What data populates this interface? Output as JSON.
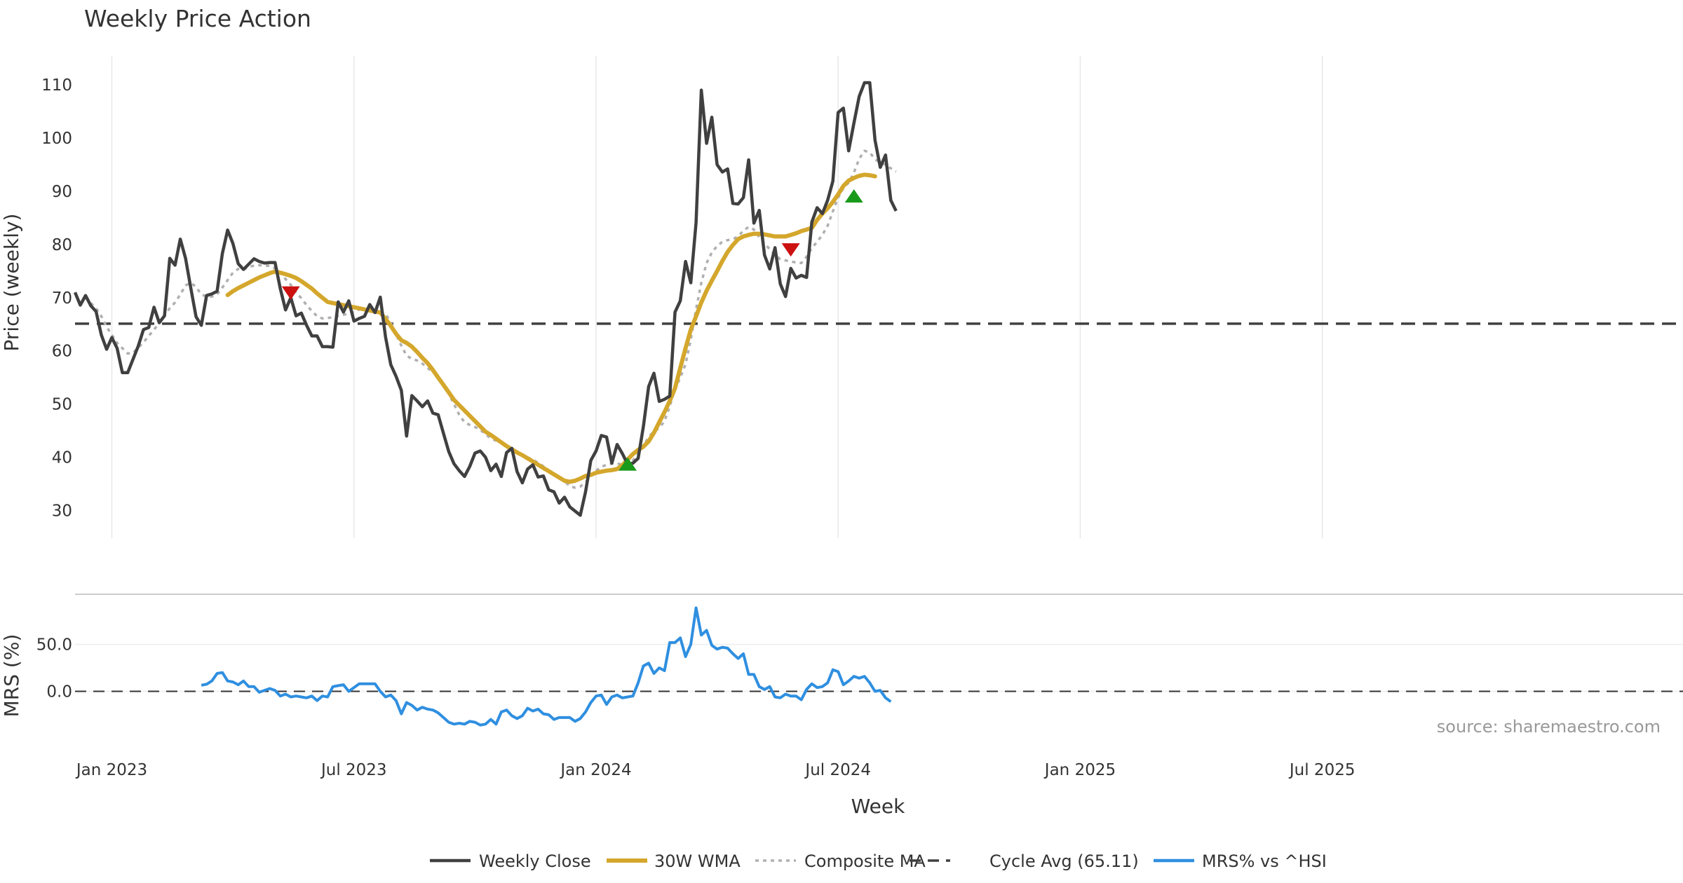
{
  "chart_data": {
    "type": "line",
    "title": "Weekly Price Action",
    "xlabel": "Week",
    "source_note": "source: sharemaestro.com",
    "colors": {
      "close": "#404040",
      "wma": "#d4a72c",
      "composite": "#b0b0b0",
      "cycle": "#404040",
      "mrs": "#2f8fe0",
      "buy": "#1a9a1a",
      "sell": "#cc1111",
      "grid": "#e8e8e8"
    },
    "x_ticks": [
      "Jan 2023",
      "Jul 2023",
      "Jan 2024",
      "Jul 2024",
      "Jan 2025",
      "Jul 2025"
    ],
    "x_tick_weeks": [
      7,
      53,
      99,
      145,
      191,
      237
    ],
    "price_panel": {
      "ylabel": "Price (weekly)",
      "ylim": [
        24.8,
        115.4
      ],
      "y_ticks": [
        "110",
        "100",
        "90",
        "80",
        "70",
        "60",
        "50",
        "40",
        "30"
      ],
      "y_tick_values": [
        110,
        100,
        90,
        80,
        70,
        60,
        50,
        40,
        30
      ],
      "weekly_close": [
        71.0,
        68.6,
        70.4,
        68.5,
        67.4,
        63.0,
        60.3,
        62.5,
        60.5,
        55.9,
        55.9,
        58.4,
        60.9,
        64.0,
        64.4,
        68.2,
        65.3,
        66.6,
        77.4,
        76.1,
        81.0,
        77.4,
        71.8,
        66.4,
        64.8,
        70.4,
        70.7,
        71.2,
        78.3,
        82.7,
        80.2,
        76.4,
        75.3,
        76.3,
        77.3,
        76.8,
        76.5,
        76.6,
        76.6,
        71.7,
        67.7,
        70.0,
        66.6,
        67.1,
        64.8,
        62.8,
        62.8,
        60.8,
        60.8,
        60.7,
        69.2,
        67.3,
        69.4,
        65.6,
        66.1,
        66.5,
        68.7,
        67.2,
        70.1,
        62.6,
        57.4,
        55.2,
        52.6,
        44.0,
        51.6,
        50.6,
        49.5,
        50.6,
        48.3,
        48.0,
        44.5,
        41.1,
        38.8,
        37.5,
        36.4,
        38.3,
        40.8,
        41.2,
        40.0,
        37.5,
        38.7,
        36.4,
        40.9,
        41.7,
        37.3,
        35.2,
        37.8,
        38.6,
        36.3,
        36.5,
        33.9,
        33.5,
        31.4,
        32.5,
        30.7,
        29.9,
        29.1,
        33.5,
        39.4,
        41.2,
        44.1,
        43.8,
        38.9,
        42.4,
        40.7,
        38.7,
        38.9,
        39.8,
        45.8,
        53.3,
        55.8,
        50.5,
        50.9,
        51.5,
        67.3,
        69.4,
        76.8,
        72.8,
        84.1,
        109.0,
        99.0,
        103.9,
        95.0,
        93.6,
        94.2,
        87.7,
        87.6,
        88.8,
        95.9,
        84.0,
        86.4,
        78.0,
        75.4,
        79.4,
        72.6,
        70.2,
        75.5,
        73.7,
        74.2,
        73.8,
        84.2,
        86.9,
        85.8,
        88.3,
        91.9,
        104.8,
        105.6,
        97.6,
        102.8,
        107.8,
        110.4,
        110.4,
        99.6,
        94.5,
        96.8,
        88.3,
        86.3
      ],
      "wma_30w": {
        "start_week": 29,
        "values": [
          70.5,
          71.2,
          71.8,
          72.3,
          72.8,
          73.3,
          73.8,
          74.2,
          74.6,
          74.9,
          74.7,
          74.4,
          74.1,
          73.7,
          73.1,
          72.4,
          71.7,
          70.8,
          70.0,
          69.2,
          69.0,
          68.8,
          68.6,
          68.4,
          68.2,
          68.0,
          67.8,
          67.6,
          67.4,
          67.2,
          66.0,
          64.7,
          63.2,
          62.0,
          61.5,
          60.8,
          59.8,
          58.7,
          57.7,
          56.4,
          55.0,
          53.6,
          52.2,
          50.8,
          49.8,
          48.8,
          47.8,
          46.8,
          45.8,
          44.8,
          44.2,
          43.5,
          42.8,
          42.1,
          41.5,
          40.9,
          40.4,
          39.8,
          39.2,
          38.6,
          38.0,
          37.4,
          36.8,
          36.2,
          35.6,
          35.4,
          35.6,
          36.0,
          36.5,
          36.7,
          37.1,
          37.3,
          37.5,
          37.6,
          37.8,
          38.5,
          39.6,
          40.6,
          41.4,
          42.0,
          43.0,
          44.6,
          46.6,
          48.5,
          50.6,
          53.0,
          56.8,
          60.5,
          64.0,
          66.5,
          69.1,
          71.3,
          73.2,
          75.0,
          76.9,
          78.6,
          79.9,
          81.0,
          81.5,
          81.8,
          82.0,
          82.0,
          81.9,
          81.7,
          81.5,
          81.5,
          81.5,
          81.8,
          82.1,
          82.5,
          82.8,
          83.1,
          84.6,
          85.8,
          86.8,
          88.0,
          89.4,
          91.0,
          92.0,
          92.5,
          92.9,
          93.1,
          93.0,
          92.8
        ]
      },
      "composite_ma": {
        "start_week": 3,
        "values": [
          69.0,
          68.0,
          66.5,
          64.5,
          63.0,
          61.5,
          60.5,
          59.5,
          59.6,
          60.6,
          61.6,
          62.8,
          64.0,
          65.2,
          66.7,
          68.0,
          69.1,
          70.6,
          72.3,
          72.8,
          72.0,
          70.6,
          70.2,
          70.2,
          70.6,
          71.9,
          73.3,
          74.7,
          75.4,
          75.3,
          75.8,
          76.0,
          76.1,
          76.0,
          76.0,
          75.5,
          74.6,
          73.5,
          72.4,
          71.0,
          69.9,
          68.6,
          67.5,
          66.5,
          66.1,
          66.2,
          66.3,
          66.6,
          66.8,
          67.0,
          67.3,
          67.8,
          67.6,
          67.4,
          67.2,
          67.2,
          67.0,
          65.3,
          63.1,
          61.0,
          59.1,
          58.5,
          58.2,
          57.6,
          56.8,
          56.0,
          55.1,
          53.7,
          51.9,
          50.0,
          48.0,
          46.6,
          46.1,
          45.7,
          45.2,
          44.3,
          43.6,
          43.1,
          42.7,
          42.1,
          41.5,
          40.9,
          40.4,
          40.0,
          39.5,
          39.0,
          38.3,
          37.5,
          36.8,
          36.1,
          35.5,
          34.6,
          34.3,
          34.5,
          35.3,
          36.4,
          37.5,
          38.2,
          38.6,
          38.8,
          38.8,
          38.7,
          38.9,
          39.4,
          40.6,
          42.2,
          43.8,
          44.9,
          45.5,
          46.8,
          49.6,
          52.8,
          55.0,
          57.5,
          62.2,
          67.8,
          72.8,
          76.5,
          78.5,
          79.7,
          80.5,
          80.8,
          81.0,
          81.5,
          82.6,
          83.3,
          82.8,
          81.4,
          80.2,
          79.1,
          78.1,
          77.2,
          77.0,
          76.8,
          76.6,
          76.5,
          77.7,
          79.3,
          80.5,
          81.8,
          83.5,
          86.2,
          88.8,
          90.6,
          91.6,
          93.5,
          96.1,
          97.6,
          97.3,
          96.0,
          95.4,
          95.0,
          94.3,
          93.7
        ]
      },
      "cycle_avg": {
        "value": 65.11,
        "label": "Cycle Avg (65.11)"
      },
      "signals": [
        {
          "type": "sell",
          "week": 41,
          "price": 70.8
        },
        {
          "type": "buy",
          "week": 105,
          "price": 38.8
        },
        {
          "type": "sell",
          "week": 136,
          "price": 78.9
        },
        {
          "type": "buy",
          "week": 148,
          "price": 89.2
        }
      ]
    },
    "mrs_panel": {
      "ylabel": "MRS (%)",
      "ylim": [
        -40,
        93
      ],
      "y_ticks": [
        "50.0",
        "0.0"
      ],
      "y_tick_values": [
        50,
        0
      ],
      "zero_line": 0,
      "start_week": 24,
      "values": [
        6.5,
        7.5,
        11,
        19,
        20,
        11,
        10,
        7,
        11,
        5,
        5,
        -1,
        1,
        3,
        1,
        -5,
        -3,
        -6,
        -5,
        -6,
        -7,
        -5,
        -10,
        -5,
        -6,
        5,
        6,
        7,
        0,
        4,
        8,
        8,
        8,
        8,
        0,
        -6,
        -4,
        -10,
        -24,
        -12,
        -15,
        -20,
        -17,
        -19,
        -20,
        -23,
        -28,
        -33,
        -35,
        -34,
        -35,
        -32,
        -33,
        -36,
        -35,
        -30,
        -35,
        -22,
        -20,
        -26,
        -29,
        -26,
        -18,
        -21,
        -19,
        -24,
        -25,
        -30,
        -28,
        -28,
        -28,
        -32,
        -29,
        -22,
        -12,
        -5,
        -4,
        -14,
        -6,
        -4,
        -7,
        -6,
        -5,
        9,
        27,
        30,
        19,
        25,
        22,
        52,
        52,
        57,
        37,
        50,
        89,
        60,
        65,
        49,
        45,
        47,
        46,
        40,
        35,
        40,
        18,
        18,
        5,
        2,
        5,
        -6,
        -7,
        -3,
        -5,
        -5,
        -9,
        2,
        8,
        4,
        5,
        9,
        23,
        21,
        7,
        11,
        16,
        14,
        16,
        9,
        0,
        1,
        -7,
        -11
      ]
    },
    "legend": [
      {
        "key": "close",
        "label": "Weekly Close",
        "style": "solid"
      },
      {
        "key": "wma",
        "label": "30W WMA",
        "style": "solid"
      },
      {
        "key": "composite",
        "label": "Composite MA",
        "style": "dotted"
      },
      {
        "key": "cycle",
        "label": "Cycle Avg (65.11)",
        "style": "dashed"
      },
      {
        "key": "mrs",
        "label": "MRS% vs ^HSI",
        "style": "solid"
      }
    ]
  }
}
